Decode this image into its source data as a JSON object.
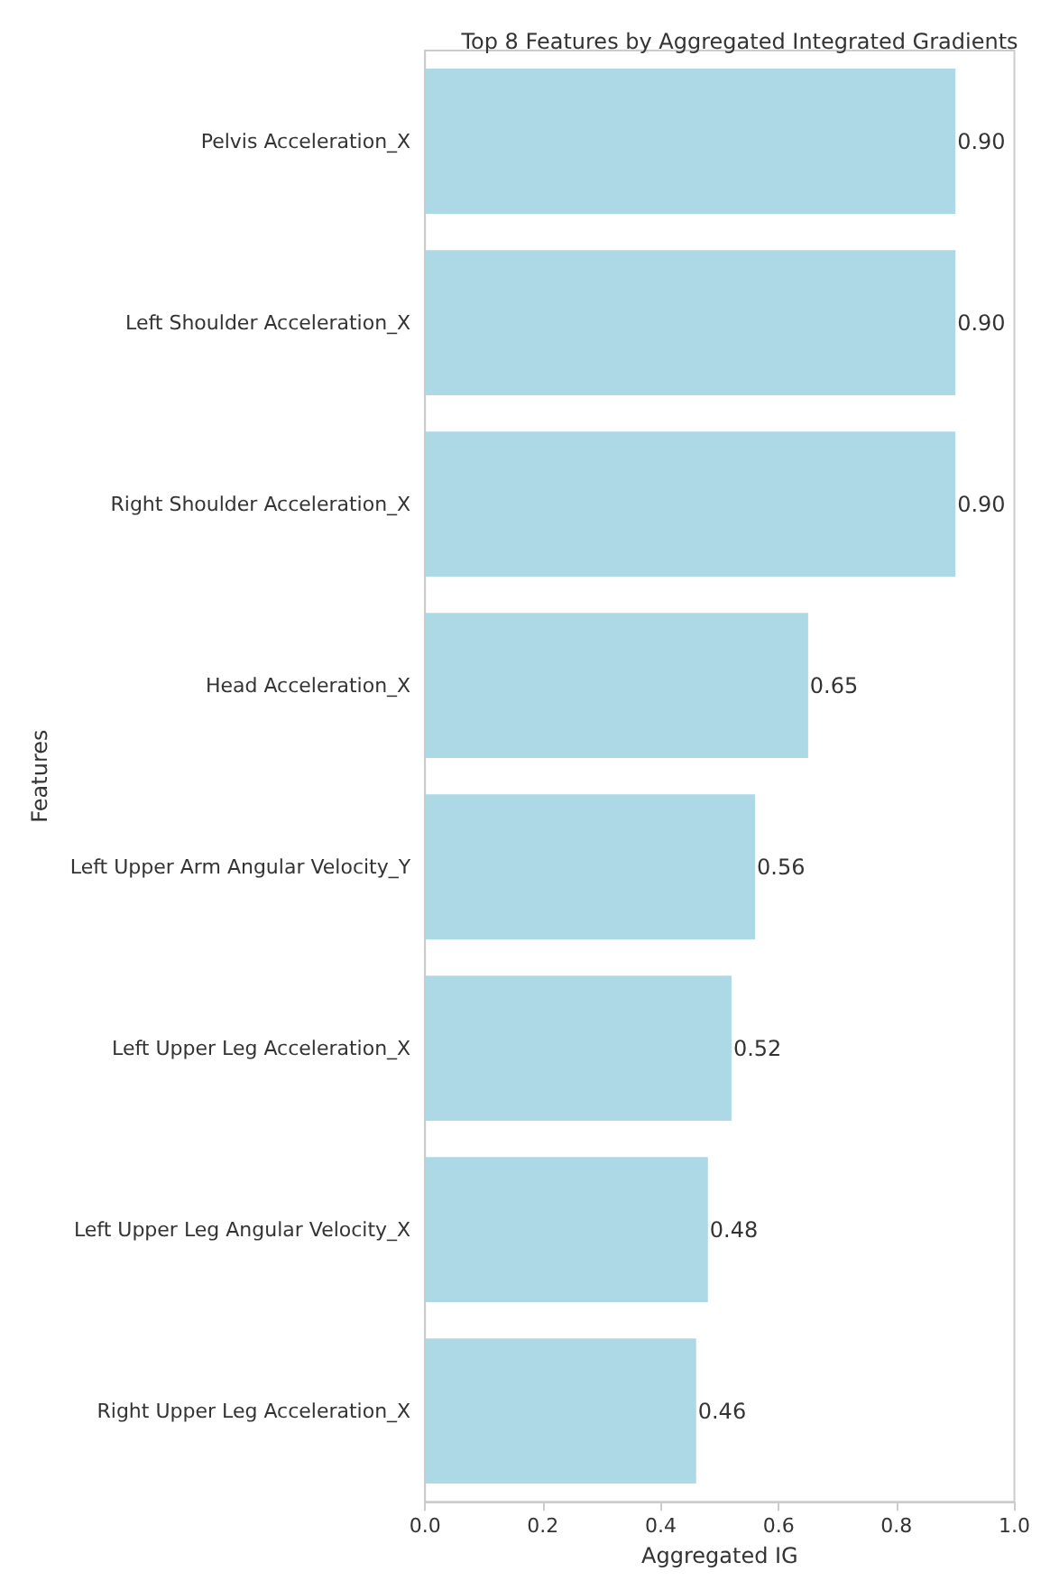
{
  "chart_data": {
    "type": "bar",
    "orientation": "horizontal",
    "title": "Top 8 Features by Aggregated Integrated Gradients",
    "xlabel": "Aggregated IG",
    "ylabel": "Features",
    "categories": [
      "Pelvis Acceleration_X",
      "Left Shoulder Acceleration_X",
      "Right Shoulder Acceleration_X",
      "Head Acceleration_X",
      "Left Upper Arm Angular Velocity_Y",
      "Left Upper Leg Acceleration_X",
      "Left Upper Leg Angular Velocity_X",
      "Right Upper Leg Acceleration_X"
    ],
    "values": [
      0.9,
      0.9,
      0.9,
      0.65,
      0.56,
      0.52,
      0.48,
      0.46
    ],
    "value_labels": [
      "0.90",
      "0.90",
      "0.90",
      "0.65",
      "0.56",
      "0.52",
      "0.48",
      "0.46"
    ],
    "color": "#add8e6",
    "xlim": [
      0,
      1
    ],
    "xticks": [
      {
        "value": 0,
        "label": "0.0"
      },
      {
        "value": 0.2,
        "label": "0.2"
      },
      {
        "value": 0.4,
        "label": "0.4"
      },
      {
        "value": 0.6,
        "label": "0.6"
      },
      {
        "value": 0.8,
        "label": "0.8"
      },
      {
        "value": 1,
        "label": "1.0"
      }
    ],
    "grid": false
  }
}
